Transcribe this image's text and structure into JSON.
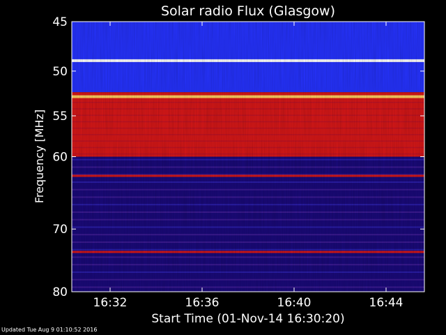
{
  "chart_data": {
    "type": "heatmap",
    "title": "Solar radio Flux (Glasgow)",
    "xlabel": "Start Time (01-Nov-14 16:30:20)",
    "ylabel": "Frequency [MHz]",
    "x_range_minutes": [
      "16:30:20",
      "16:45:40"
    ],
    "x_ticks": [
      "16:32",
      "16:36",
      "16:40",
      "16:44"
    ],
    "y_ticks": [
      "45",
      "50",
      "55",
      "60",
      "70",
      "80"
    ],
    "ylim": [
      45,
      80
    ],
    "y_scale": "log",
    "colormap": [
      "#1a0a7a",
      "#2633ff",
      "#7a2bb0",
      "#d81818",
      "#ff4a14",
      "#ffd060",
      "#ffffff"
    ],
    "bright_bands_mhz": [
      {
        "freq": 48.9,
        "level": "white"
      },
      {
        "freq": 52.8,
        "level": "orange-white"
      },
      {
        "freq": 59.3,
        "level": "red"
      },
      {
        "freq": 62.5,
        "level": "red"
      },
      {
        "freq": 73.5,
        "level": "red"
      }
    ],
    "regions": [
      {
        "from_mhz": 45,
        "to_mhz": 52.3,
        "level": "blue"
      },
      {
        "from_mhz": 52.3,
        "to_mhz": 60,
        "level": "red"
      },
      {
        "from_mhz": 60,
        "to_mhz": 80,
        "level": "purple"
      }
    ]
  },
  "footer": {
    "updated_text": "Updated Tue Aug  9 01:10:52 2016"
  }
}
